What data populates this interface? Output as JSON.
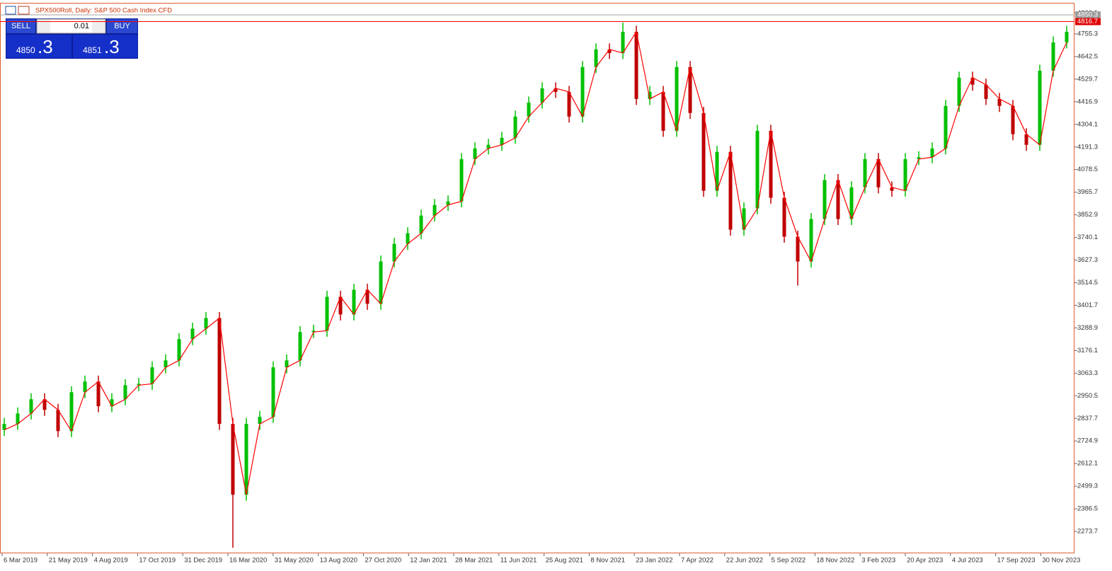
{
  "chart_data": {
    "type": "candlestick",
    "title": "SPX500Roll, Daily:  S&P 500 Cash Index CFD",
    "x_labels": [
      "6 Mar 2019",
      "21 May 2019",
      "4 Aug 2019",
      "17 Oct 2019",
      "31 Dec 2019",
      "16 Mar 2020",
      "31 May 2020",
      "13 Aug 2020",
      "27 Oct 2020",
      "12 Jan 2021",
      "28 Mar 2021",
      "11 Jun 2021",
      "25 Aug 2021",
      "8 Nov 2021",
      "23 Jan 2022",
      "7 Apr 2022",
      "22 Jun 2022",
      "5 Sep 2022",
      "18 Nov 2022",
      "3 Feb 2023",
      "20 Apr 2023",
      "4 Jul 2023",
      "17 Sep 2023",
      "30 Nov 2023"
    ],
    "ylim": [
      2164.4,
      4910.4
    ],
    "yticks": [
      4860.1,
      4755.3,
      4642.5,
      4529.7,
      4416.9,
      4304.1,
      4191.3,
      4078.5,
      3965.7,
      3852.9,
      3740.1,
      3627.3,
      3514.5,
      3401.7,
      3288.9,
      3176.1,
      3063.3,
      2950.5,
      2837.7,
      2724.9,
      2612.1,
      2499.3,
      2386.5,
      2273.7
    ],
    "up_color": "#00c000",
    "down_color": "#c00000",
    "candles": {
      "open": [
        2780,
        2810,
        2862,
        2933,
        2880,
        2774,
        2968,
        3021,
        2898,
        2933,
        3003,
        3010,
        3092,
        3127,
        3233,
        3285,
        3338,
        2810,
        2457,
        2810,
        2845,
        3092,
        3127,
        3268,
        3275,
        3444,
        3356,
        3479,
        3409,
        3620,
        3708,
        3761,
        3849,
        3902,
        3920,
        4131,
        4184,
        4202,
        4237,
        4343,
        4413,
        4484,
        4466,
        4343,
        4590,
        4678,
        4660,
        4766,
        4431,
        4466,
        4272,
        4590,
        4361,
        3973,
        4167,
        3779,
        3885,
        4272,
        3938,
        3744,
        3620,
        3832,
        4026,
        3832,
        3990,
        4131,
        3990,
        3973,
        4131,
        4140,
        4184,
        4396,
        4537,
        4502,
        4431,
        4396,
        4255,
        4202,
        4572,
        4713
      ],
      "high": [
        2840,
        2892,
        2963,
        2963,
        2910,
        2998,
        3051,
        3051,
        2963,
        3033,
        3040,
        3122,
        3157,
        3263,
        3315,
        3368,
        3368,
        2840,
        2840,
        2875,
        3122,
        3157,
        3298,
        3305,
        3474,
        3474,
        3509,
        3509,
        3650,
        3738,
        3791,
        3879,
        3932,
        3950,
        4161,
        4214,
        4232,
        4267,
        4373,
        4443,
        4514,
        4514,
        4496,
        4620,
        4708,
        4708,
        4812,
        4796,
        4496,
        4496,
        4620,
        4620,
        4391,
        4197,
        4197,
        3915,
        4302,
        4302,
        3968,
        3774,
        3862,
        4056,
        4056,
        4020,
        4161,
        4161,
        4020,
        4161,
        4170,
        4214,
        4426,
        4567,
        4567,
        4532,
        4461,
        4426,
        4285,
        4602,
        4743,
        4796
      ],
      "low": [
        2750,
        2780,
        2832,
        2850,
        2744,
        2744,
        2938,
        2868,
        2868,
        2903,
        2973,
        2980,
        3062,
        3097,
        3203,
        3255,
        2780,
        2192,
        2427,
        2780,
        2815,
        3062,
        3097,
        3238,
        3245,
        3326,
        3326,
        3379,
        3379,
        3590,
        3678,
        3731,
        3819,
        3872,
        3890,
        4101,
        4154,
        4172,
        4207,
        4313,
        4383,
        4436,
        4313,
        4313,
        4560,
        4630,
        4630,
        4401,
        4401,
        4242,
        4242,
        4331,
        3943,
        3943,
        3749,
        3749,
        3855,
        3908,
        3714,
        3500,
        3590,
        3802,
        3802,
        3802,
        3960,
        3960,
        3943,
        3943,
        4101,
        4110,
        4154,
        4366,
        4472,
        4401,
        4366,
        4225,
        4172,
        4172,
        4542,
        4683
      ],
      "close": [
        2810,
        2862,
        2933,
        2880,
        2774,
        2968,
        3021,
        2898,
        2933,
        3003,
        3010,
        3092,
        3127,
        3233,
        3285,
        3338,
        2810,
        2457,
        2810,
        2845,
        3092,
        3127,
        3268,
        3275,
        3444,
        3356,
        3479,
        3409,
        3620,
        3708,
        3761,
        3849,
        3902,
        3920,
        4131,
        4184,
        4202,
        4237,
        4343,
        4413,
        4484,
        4466,
        4343,
        4590,
        4678,
        4660,
        4766,
        4431,
        4466,
        4272,
        4590,
        4361,
        3973,
        4167,
        3779,
        3885,
        4272,
        3938,
        3744,
        3620,
        3832,
        4026,
        3832,
        3990,
        4131,
        3990,
        3973,
        4131,
        4140,
        4184,
        4396,
        4537,
        4502,
        4431,
        4396,
        4255,
        4202,
        4572,
        4713,
        4766
      ]
    },
    "ma": {
      "color": "#ff0000",
      "values": [
        2780,
        2810,
        2862,
        2933,
        2880,
        2774,
        2968,
        3021,
        2898,
        2933,
        3003,
        3010,
        3092,
        3127,
        3233,
        3285,
        3338,
        2810,
        2457,
        2810,
        2845,
        3092,
        3127,
        3268,
        3275,
        3444,
        3356,
        3479,
        3409,
        3620,
        3708,
        3761,
        3849,
        3902,
        3920,
        4131,
        4184,
        4202,
        4237,
        4343,
        4413,
        4484,
        4466,
        4343,
        4590,
        4678,
        4660,
        4766,
        4431,
        4466,
        4272,
        4590,
        4361,
        3973,
        4167,
        3779,
        3885,
        4272,
        3938,
        3744,
        3620,
        3832,
        4026,
        3832,
        3990,
        4131,
        3990,
        3973,
        4131,
        4140,
        4184,
        4396,
        4537,
        4502,
        4431,
        4396,
        4255,
        4202,
        4572,
        4713
      ]
    },
    "bid_line": 4850.3,
    "red_line": 4816.7
  },
  "trade_panel": {
    "sell": "SELL",
    "buy": "BUY",
    "lot": "0.01",
    "sell_big": "4850",
    "sell_small": ".3",
    "buy_big": "4851",
    "buy_small": ".3"
  }
}
